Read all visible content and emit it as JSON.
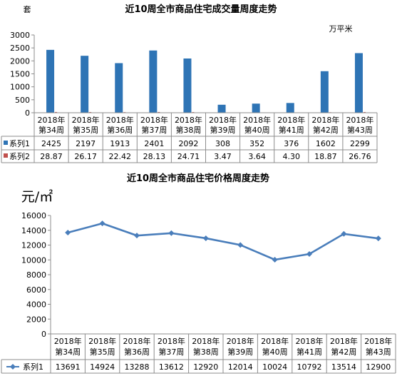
{
  "chart_data": [
    {
      "type": "bar",
      "title": "近10周全市商品住宅成交量周度走势",
      "ylabel": "套",
      "y2label": "万平米",
      "categories": [
        "2018年第34周",
        "2018年第35周",
        "2018年第36周",
        "2018年第37周",
        "2018年第38周",
        "2018年第39周",
        "2018年第40周",
        "2018年第41周",
        "2018年第42周",
        "2018年第43周"
      ],
      "category_lines": [
        [
          "2018年",
          "第34周"
        ],
        [
          "2018年",
          "第35周"
        ],
        [
          "2018年",
          "第36周"
        ],
        [
          "2018年",
          "第37周"
        ],
        [
          "2018年",
          "第38周"
        ],
        [
          "2018年",
          "第39周"
        ],
        [
          "2018年",
          "第40周"
        ],
        [
          "2018年",
          "第41周"
        ],
        [
          "2018年",
          "第42周"
        ],
        [
          "2018年",
          "第43周"
        ]
      ],
      "ylim": [
        0,
        3000
      ],
      "yticks": [
        0,
        500,
        1000,
        1500,
        2000,
        2500,
        3000
      ],
      "series": [
        {
          "name": "系列1",
          "color": "#2e74b5",
          "values": [
            2425,
            2197,
            1913,
            2401,
            2092,
            308,
            352,
            376,
            1602,
            2299
          ],
          "labels": [
            "2425",
            "2197",
            "1913",
            "2401",
            "2092",
            "308",
            "352",
            "376",
            "1602",
            "2299"
          ]
        },
        {
          "name": "系列2",
          "color": "#c0504d",
          "values": [
            28.87,
            26.17,
            22.42,
            28.13,
            24.71,
            3.47,
            3.64,
            4.3,
            18.87,
            26.76
          ],
          "labels": [
            "28.87",
            "26.17",
            "22.42",
            "28.13",
            "24.71",
            "3.47",
            "3.64",
            "4.30",
            "18.87",
            "26.76"
          ]
        }
      ],
      "grid": false,
      "legend": "data-table"
    },
    {
      "type": "line",
      "title": "近10周全市商品住宅价格周度走势",
      "ylabel": "元/㎡",
      "categories": [
        "2018年第34周",
        "2018年第35周",
        "2018年第36周",
        "2018年第37周",
        "2018年第38周",
        "2018年第39周",
        "2018年第40周",
        "2018年第41周",
        "2018年第42周",
        "2018年第43周"
      ],
      "category_lines": [
        [
          "2018年",
          "第34周"
        ],
        [
          "2018年",
          "第35周"
        ],
        [
          "2018年",
          "第36周"
        ],
        [
          "2018年",
          "第37周"
        ],
        [
          "2018年",
          "第38周"
        ],
        [
          "2018年",
          "第39周"
        ],
        [
          "2018年",
          "第40周"
        ],
        [
          "2018年",
          "第41周"
        ],
        [
          "2018年",
          "第42周"
        ],
        [
          "2018年",
          "第43周"
        ]
      ],
      "ylim": [
        0,
        16000
      ],
      "yticks": [
        0,
        2000,
        4000,
        6000,
        8000,
        10000,
        12000,
        14000,
        16000
      ],
      "series": [
        {
          "name": "系列1",
          "color": "#4a7ebb",
          "values": [
            13691,
            14924,
            13288,
            13612,
            12920,
            12014,
            10024,
            10792,
            13514,
            12900
          ],
          "labels": [
            "13691",
            "14924",
            "13288",
            "13612",
            "12920",
            "12014",
            "10024",
            "10792",
            "13514",
            "12900"
          ]
        }
      ],
      "grid": false,
      "legend": "data-table"
    }
  ]
}
